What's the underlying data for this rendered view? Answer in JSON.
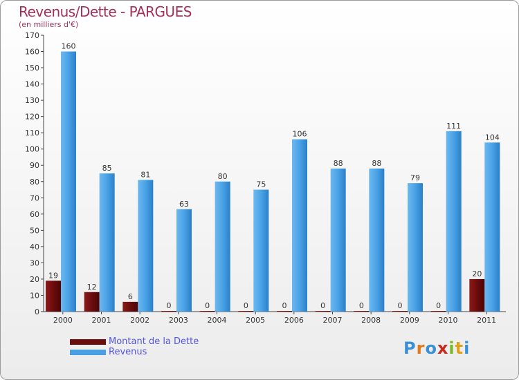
{
  "title": "Revenus/Dette - PARGUES",
  "subtitle": "(en milliers d'€)",
  "legend": {
    "debt_label": "Montant de la Dette",
    "revenue_label": "Revenus"
  },
  "logo": {
    "text": "Proxiti"
  },
  "colors": {
    "debt": "#6b0c0c",
    "revenue": "#4a9fe2",
    "title": "#a2305a",
    "legend_text": "#5555dd"
  },
  "chart_data": {
    "type": "bar",
    "title": "Revenus/Dette - PARGUES",
    "ylabel": "(en milliers d'€)",
    "xlabel": "",
    "ylim": [
      0,
      170
    ],
    "ytick_step": 10,
    "grid": false,
    "categories": [
      "2000",
      "2001",
      "2002",
      "2003",
      "2004",
      "2005",
      "2006",
      "2007",
      "2008",
      "2009",
      "2010",
      "2011"
    ],
    "series": [
      {
        "name": "Montant de la Dette",
        "values": [
          19,
          12,
          6,
          0,
          0,
          0,
          0,
          0,
          0,
          0,
          0,
          20
        ]
      },
      {
        "name": "Revenus",
        "values": [
          160,
          85,
          81,
          63,
          80,
          75,
          106,
          88,
          88,
          79,
          111,
          104
        ]
      }
    ]
  }
}
